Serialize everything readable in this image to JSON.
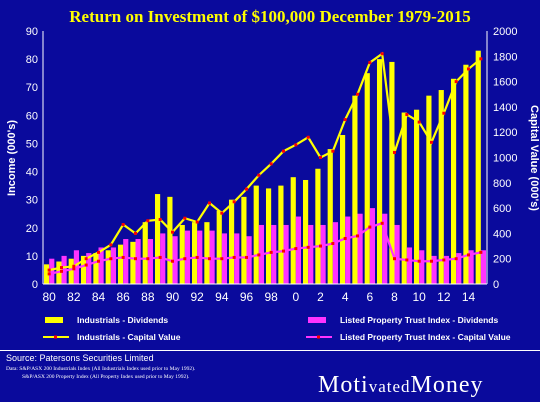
{
  "chart_data": {
    "type": "bar",
    "title": "Return on Investment of  $100,000 December 1979-2015",
    "ylabel_left": "Income (000's)",
    "ylabel_right": "Capital Value (000's)",
    "ylim_left": [
      0,
      90
    ],
    "ylim_right": [
      0,
      2000
    ],
    "yticks_left": [
      "0",
      "10",
      "20",
      "30",
      "40",
      "50",
      "60",
      "70",
      "80",
      "90"
    ],
    "yticks_right": [
      "0",
      "200",
      "400",
      "600",
      "800",
      "1000",
      "1200",
      "1400",
      "1600",
      "1800",
      "2000"
    ],
    "x": [
      1980,
      1981,
      1982,
      1983,
      1984,
      1985,
      1986,
      1987,
      1988,
      1989,
      1990,
      1991,
      1992,
      1993,
      1994,
      1995,
      1996,
      1997,
      1998,
      1999,
      2000,
      2001,
      2002,
      2003,
      2004,
      2005,
      2006,
      2007,
      2008,
      2009,
      2010,
      2011,
      2012,
      2013,
      2014,
      2015
    ],
    "xtick_labels": [
      "80",
      "82",
      "84",
      "86",
      "88",
      "90",
      "92",
      "94",
      "96",
      "98",
      "0",
      "2",
      "4",
      "6",
      "8",
      "10",
      "12",
      "14"
    ],
    "series": [
      {
        "name": "Industrials - Dividends",
        "kind": "bar",
        "axis": "left",
        "color": "#ffff00",
        "values": [
          7,
          8,
          9,
          10,
          11,
          12,
          14,
          15,
          22,
          32,
          31,
          21,
          22,
          22,
          26,
          30,
          31,
          35,
          34,
          35,
          38,
          37,
          41,
          48,
          53,
          67,
          75,
          80,
          79,
          61,
          62,
          67,
          69,
          73,
          78,
          83
        ]
      },
      {
        "name": "Listed Property Trust Index - Dividends",
        "kind": "bar",
        "axis": "left",
        "color": "#ff33ff",
        "values": [
          9,
          10,
          12,
          11,
          13,
          13,
          16,
          16,
          16,
          18,
          17,
          19,
          19,
          19,
          18,
          18,
          17,
          21,
          21,
          21,
          24,
          21,
          21,
          22,
          24,
          25,
          27,
          25,
          21,
          13,
          12,
          10,
          10,
          11,
          12,
          12
        ]
      },
      {
        "name": "Industrials - Capital Value",
        "kind": "line",
        "axis": "right",
        "color": "#ffff00",
        "marker_color": "#ff0000",
        "values": [
          110,
          130,
          140,
          200,
          250,
          310,
          470,
          400,
          500,
          510,
          410,
          520,
          490,
          640,
          560,
          650,
          750,
          860,
          950,
          1050,
          1100,
          1160,
          1000,
          1050,
          1300,
          1500,
          1750,
          1820,
          1040,
          1340,
          1280,
          1120,
          1350,
          1600,
          1700,
          1780
        ]
      },
      {
        "name": "Listed Property Trust Index - Capital Value",
        "kind": "line",
        "axis": "right",
        "color": "#ff33ff",
        "marker_color": "#ff0000",
        "values": [
          80,
          100,
          120,
          150,
          180,
          200,
          210,
          200,
          200,
          210,
          180,
          200,
          210,
          200,
          200,
          210,
          210,
          230,
          250,
          260,
          280,
          290,
          300,
          320,
          360,
          380,
          450,
          480,
          200,
          190,
          180,
          180,
          190,
          200,
          230,
          250
        ]
      }
    ],
    "legend_placement": "bottom"
  },
  "source": "Source: Patersons Securities Limited",
  "notes": [
    "Data: S&P/ASX 200 Industrials Index (All Industrials Index used prior to May 1992).",
    "S&P/ASX 200 Property Index (All Property Index used prior to May 1992)."
  ],
  "logo": {
    "part1": "Moti",
    "part2": "vated",
    "part3": "Money"
  },
  "colors": {
    "background": "#0a0a9c",
    "title": "#ffff00",
    "text": "#ffffff"
  }
}
